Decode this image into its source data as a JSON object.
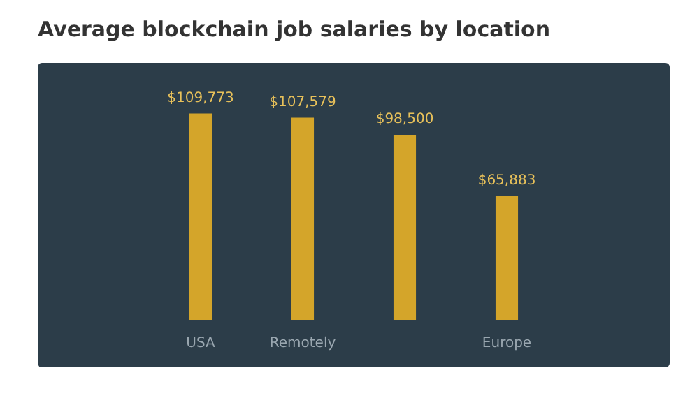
{
  "chart_data": {
    "type": "bar",
    "title": "Average blockchain job salaries by location",
    "categories": [
      "USA",
      "Remotely",
      null,
      "Europe"
    ],
    "values": [
      109773,
      107579,
      98500,
      65883
    ],
    "value_labels": [
      "$109,773",
      "$107,579",
      "$98,500",
      "$65,883"
    ],
    "color": "#d4a52a",
    "ylim": [
      0,
      110000
    ],
    "grid": false,
    "legend": false
  }
}
